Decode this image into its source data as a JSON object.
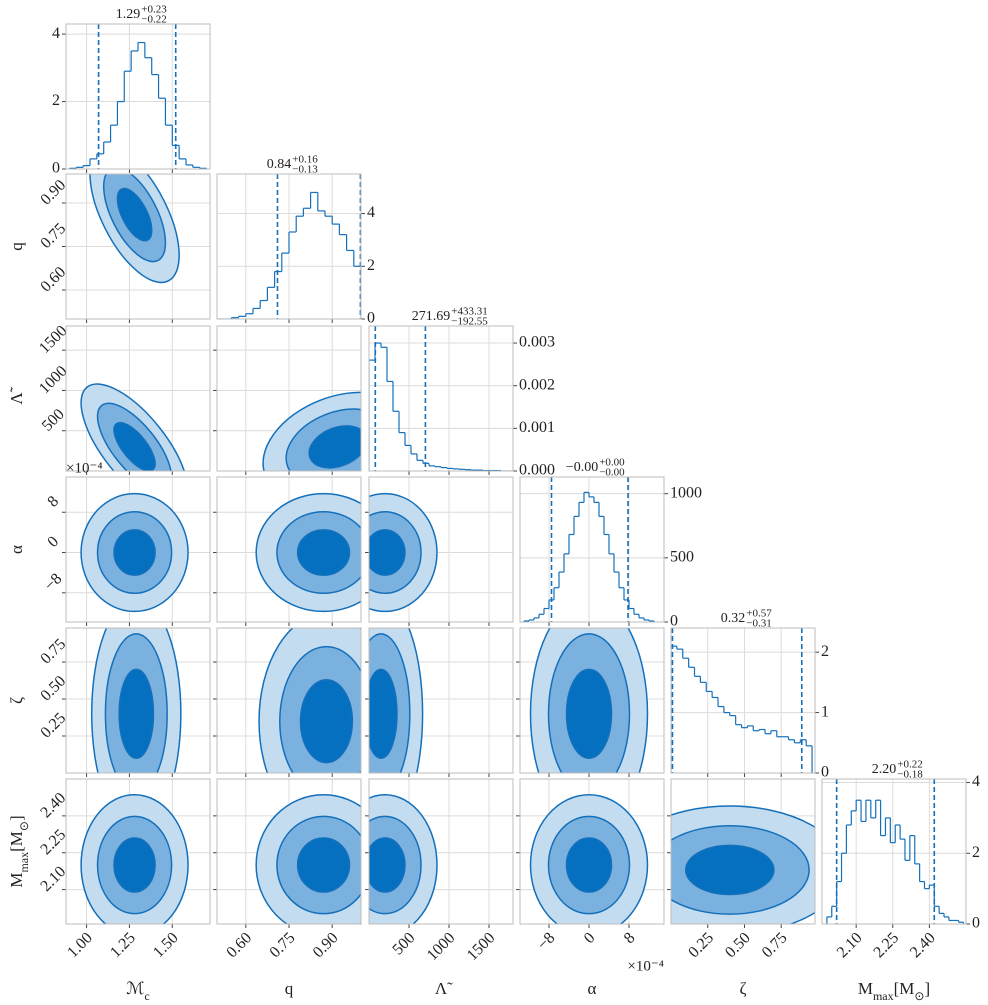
{
  "chart_data": {
    "type": "corner",
    "line_color": "#1470bb",
    "levels": [
      1,
      1.8,
      2.6
    ],
    "level_colors": [
      "#0670c0",
      "#7bb1de",
      "#c3dcf0"
    ],
    "grid": true,
    "params": [
      {
        "label": [
          {
            "text": "ℳ"
          },
          {
            "text": "c",
            "sub": true
          }
        ],
        "lim": [
          0.88,
          1.72
        ],
        "ticks": [
          {
            "value": 1.0,
            "label": "1.00"
          },
          1.25,
          {
            "value": 1.5,
            "label": "1.50"
          }
        ],
        "title": {
          "median": "1.29",
          "plus": "+0.23",
          "minus": "−0.22"
        },
        "quantiles": [
          1.07,
          1.52
        ],
        "hist_ylim": [
          0,
          4.3
        ],
        "hist_yticks": [
          0,
          2,
          4
        ],
        "bins": [
          0.9,
          0.94,
          0.98,
          1.02,
          1.06,
          1.1,
          1.14,
          1.18,
          1.22,
          1.26,
          1.3,
          1.34,
          1.38,
          1.42,
          1.46,
          1.5,
          1.54,
          1.58,
          1.62,
          1.66,
          1.7
        ],
        "counts": [
          0.02,
          0.05,
          0.1,
          0.3,
          0.45,
          0.8,
          1.3,
          2.0,
          2.9,
          3.5,
          3.75,
          3.3,
          2.8,
          2.1,
          1.3,
          0.7,
          0.3,
          0.12,
          0.05,
          0.02
        ]
      },
      {
        "label": [
          {
            "text": "q"
          }
        ],
        "lim": [
          0.5,
          1.0
        ],
        "ticks": [
          {
            "value": 0.6,
            "label": "0.60"
          },
          0.75,
          {
            "value": 0.9,
            "label": "0.90"
          }
        ],
        "title": {
          "median": "0.84",
          "plus": "+0.16",
          "minus": "−0.13"
        },
        "quantiles": [
          0.71,
          0.998
        ],
        "hist_ylim": [
          0,
          5.5
        ],
        "hist_yticks": [
          0,
          2,
          4
        ],
        "bins": [
          0.5,
          0.525,
          0.55,
          0.575,
          0.6,
          0.625,
          0.65,
          0.675,
          0.7,
          0.725,
          0.75,
          0.775,
          0.8,
          0.825,
          0.85,
          0.875,
          0.9,
          0.925,
          0.95,
          0.975,
          1.0
        ],
        "counts": [
          0,
          0,
          0.05,
          0.1,
          0.2,
          0.4,
          0.7,
          1.2,
          1.8,
          2.5,
          3.3,
          3.9,
          4.2,
          4.8,
          4.1,
          3.9,
          3.6,
          3.2,
          2.6,
          2.0
        ]
      },
      {
        "label": [
          {
            "text": "Λ̃"
          }
        ],
        "lim": [
          0,
          1800
        ],
        "ticks": [
          500,
          1000,
          1500
        ],
        "title": {
          "median": "271.69",
          "plus": "+433.31",
          "minus": "−192.55"
        },
        "quantiles": [
          79,
          705
        ],
        "hist_ylim": [
          0,
          0.0034
        ],
        "hist_yticks": [
          {
            "value": 0,
            "label": "0.000"
          },
          {
            "value": 0.001,
            "label": "0.001"
          },
          {
            "value": 0.002,
            "label": "0.002"
          },
          {
            "value": 0.003,
            "label": "0.003"
          }
        ],
        "bins": [
          0,
          75,
          150,
          225,
          300,
          375,
          450,
          525,
          600,
          675,
          750,
          825,
          900,
          975,
          1050,
          1125,
          1200,
          1275,
          1350,
          1425,
          1500,
          1575,
          1650,
          1725,
          1800
        ],
        "counts": [
          0.0026,
          0.003,
          0.0029,
          0.0021,
          0.0014,
          0.0009,
          0.0006,
          0.0004,
          0.00025,
          0.00018,
          0.00012,
          0.0001,
          8e-05,
          6e-05,
          5e-05,
          4e-05,
          3e-05,
          2e-05,
          2e-05,
          1e-05,
          1e-05,
          1e-05,
          0,
          0
        ]
      },
      {
        "label": [
          {
            "text": "α"
          }
        ],
        "lim": [
          -0.00138,
          0.0015
        ],
        "ticks": [
          {
            "value": -0.0008,
            "label": "−8"
          },
          {
            "value": 0,
            "label": "0"
          },
          {
            "value": 0.0008,
            "label": "8"
          }
        ],
        "offset_label": "×10⁻⁴",
        "title": {
          "median": "−0.00",
          "plus": "+0.00",
          "minus": "−0.00"
        },
        "quantiles": [
          -0.00075,
          0.00078
        ],
        "hist_ylim": [
          0,
          1130
        ],
        "hist_yticks": [
          0,
          500,
          1000
        ],
        "bins": [
          -0.0013,
          -0.0012,
          -0.0011,
          -0.001,
          -0.0009,
          -0.0008,
          -0.0007,
          -0.0006,
          -0.0005,
          -0.0004,
          -0.0003,
          -0.0002,
          -0.0001,
          0,
          0.0001,
          0.0002,
          0.0003,
          0.0004,
          0.0005,
          0.0006,
          0.0007,
          0.0008,
          0.0009,
          0.001,
          0.0011,
          0.0012,
          0.0013
        ],
        "counts": [
          8,
          16,
          32,
          60,
          105,
          172,
          267,
          389,
          531,
          682,
          823,
          932,
          1010,
          975,
          932,
          823,
          682,
          531,
          389,
          267,
          172,
          105,
          60,
          32,
          16,
          8
        ]
      },
      {
        "label": [
          {
            "text": "ζ"
          }
        ],
        "lim": [
          0,
          0.98
        ],
        "ticks": [
          0.25,
          {
            "value": 0.5,
            "label": "0.50"
          },
          0.75
        ],
        "title": {
          "median": "0.32",
          "plus": "+0.57",
          "minus": "−0.31"
        },
        "quantiles": [
          0.01,
          0.89
        ],
        "hist_ylim": [
          0,
          2.4
        ],
        "hist_yticks": [
          0,
          1,
          2
        ],
        "bins": [
          0,
          0.04,
          0.08,
          0.12,
          0.16,
          0.2,
          0.24,
          0.28,
          0.32,
          0.36,
          0.4,
          0.44,
          0.48,
          0.52,
          0.56,
          0.6,
          0.64,
          0.68,
          0.72,
          0.76,
          0.8,
          0.84,
          0.88,
          0.92,
          0.96
        ],
        "counts": [
          2.1,
          2.05,
          1.9,
          1.75,
          1.6,
          1.5,
          1.35,
          1.25,
          1.1,
          1.0,
          0.95,
          0.8,
          0.75,
          0.78,
          0.7,
          0.72,
          0.65,
          0.7,
          0.6,
          0.6,
          0.55,
          0.5,
          0.55,
          0.45
        ]
      },
      {
        "label": [
          {
            "text": "M"
          },
          {
            "text": "max",
            "sub": true
          },
          {
            "text": "[M"
          },
          {
            "text": "⊙",
            "sub": true
          },
          {
            "text": "]"
          }
        ],
        "lim": [
          1.96,
          2.55
        ],
        "ticks": [
          {
            "value": 2.1,
            "label": "2.10"
          },
          2.25,
          {
            "value": 2.4,
            "label": "2.40"
          }
        ],
        "title": {
          "median": "2.20",
          "plus": "+0.22",
          "minus": "−0.18"
        },
        "quantiles": [
          2.02,
          2.42
        ],
        "hist_ylim": [
          0,
          4.1
        ],
        "hist_yticks": [
          0,
          2,
          4
        ],
        "bins": [
          1.98,
          2.0,
          2.02,
          2.04,
          2.06,
          2.08,
          2.1,
          2.12,
          2.14,
          2.16,
          2.18,
          2.2,
          2.22,
          2.24,
          2.26,
          2.28,
          2.3,
          2.32,
          2.34,
          2.36,
          2.38,
          2.4,
          2.42,
          2.44,
          2.46,
          2.48,
          2.5,
          2.52,
          2.54
        ],
        "counts": [
          0.2,
          0.5,
          1.2,
          2.0,
          2.8,
          3.2,
          3.5,
          2.9,
          3.5,
          3.0,
          3.5,
          2.5,
          3.0,
          2.3,
          2.8,
          2.4,
          1.8,
          2.5,
          1.7,
          1.2,
          1.0,
          1.1,
          0.5,
          0.3,
          0.2,
          0.1,
          0.1,
          0.05
        ]
      }
    ],
    "pairs": [
      {
        "x": 0,
        "y": 1,
        "mean": [
          1.28,
          0.86
        ],
        "sd": [
          0.1,
          0.09
        ],
        "rho": -0.6
      },
      {
        "x": 0,
        "y": 2,
        "mean": [
          1.28,
          300
        ],
        "sd": [
          0.12,
          300
        ],
        "rho": -0.7
      },
      {
        "x": 1,
        "y": 2,
        "mean": [
          0.92,
          300
        ],
        "sd": [
          0.1,
          260
        ],
        "rho": 0.3
      },
      {
        "x": 0,
        "y": 3,
        "mean": [
          1.28,
          0
        ],
        "sd": [
          0.12,
          0.00045
        ],
        "rho": 0
      },
      {
        "x": 1,
        "y": 3,
        "mean": [
          0.87,
          0
        ],
        "sd": [
          0.09,
          0.00045
        ],
        "rho": 0
      },
      {
        "x": 2,
        "y": 3,
        "mean": [
          200,
          0
        ],
        "sd": [
          250,
          0.00045
        ],
        "rho": 0
      },
      {
        "x": 0,
        "y": 4,
        "mean": [
          1.29,
          0.4
        ],
        "sd": [
          0.1,
          0.3
        ],
        "rho": 0
      },
      {
        "x": 1,
        "y": 4,
        "mean": [
          0.88,
          0.35
        ],
        "sd": [
          0.09,
          0.28
        ],
        "rho": 0
      },
      {
        "x": 2,
        "y": 4,
        "mean": [
          150,
          0.4
        ],
        "sd": [
          200,
          0.3
        ],
        "rho": 0
      },
      {
        "x": 3,
        "y": 4,
        "mean": [
          0,
          0.4
        ],
        "sd": [
          0.00045,
          0.3
        ],
        "rho": 0
      },
      {
        "x": 0,
        "y": 5,
        "mean": [
          1.28,
          2.2
        ],
        "sd": [
          0.12,
          0.11
        ],
        "rho": 0
      },
      {
        "x": 1,
        "y": 5,
        "mean": [
          0.87,
          2.2
        ],
        "sd": [
          0.09,
          0.11
        ],
        "rho": 0
      },
      {
        "x": 2,
        "y": 5,
        "mean": [
          200,
          2.2
        ],
        "sd": [
          250,
          0.11
        ],
        "rho": 0
      },
      {
        "x": 3,
        "y": 5,
        "mean": [
          0,
          2.2
        ],
        "sd": [
          0.00045,
          0.11
        ],
        "rho": 0
      },
      {
        "x": 4,
        "y": 5,
        "mean": [
          0.4,
          2.18
        ],
        "sd": [
          0.3,
          0.1
        ],
        "rho": 0
      }
    ]
  }
}
